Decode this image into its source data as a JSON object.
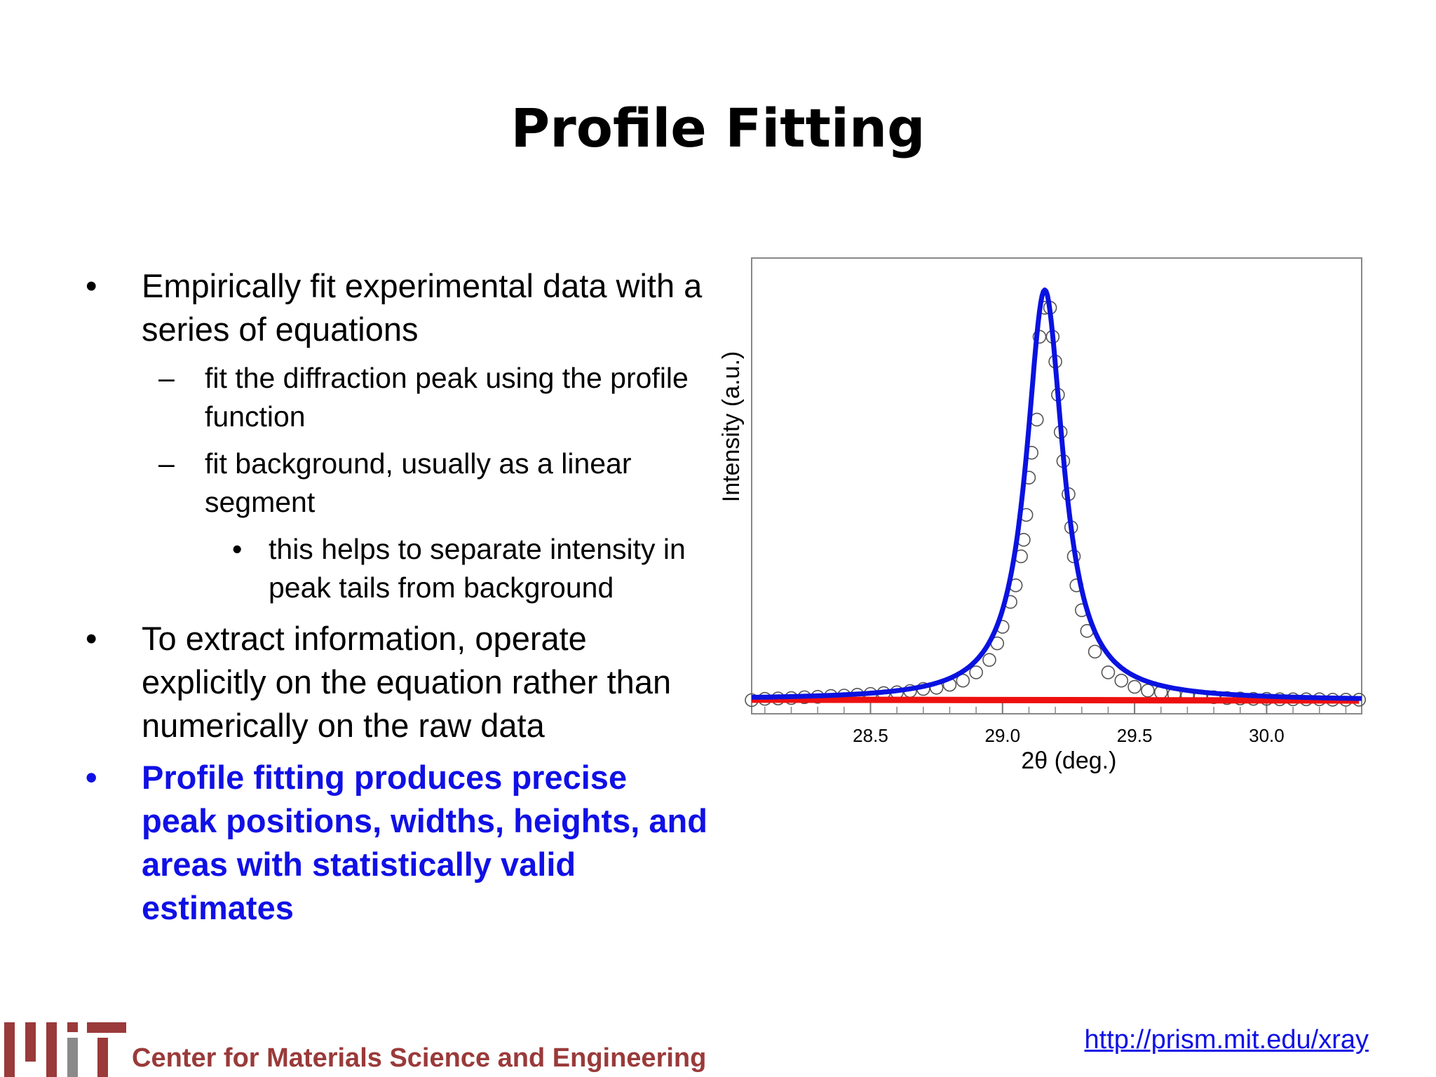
{
  "slide": {
    "title": "Profile Fitting",
    "bullets": [
      {
        "marker": "•",
        "text": "Empirically fit experimental data with a series of equations"
      },
      {
        "marker": "–",
        "text": "fit the diffraction peak using the profile function"
      },
      {
        "marker": "–",
        "text": "fit background, usually as a linear segment"
      },
      {
        "marker": "•",
        "text": "this helps to separate intensity in peak tails from background"
      },
      {
        "marker": "•",
        "text": "To extract information, operate explicitly on the equation rather than numerically on the raw data"
      },
      {
        "marker": "•",
        "text": "Profile fitting produces precise peak positions, widths, heights, and areas with statistically valid estimates"
      }
    ],
    "emphasis_color": "#1010e6"
  },
  "footer": {
    "org": "Center for Materials Science and Engineering",
    "url": "http://prism.mit.edu/xray",
    "logo_color_primary": "#9a3a3a",
    "logo_color_secondary": "#8a8a8a"
  },
  "chart_data": {
    "type": "line",
    "xlabel": "2θ (deg.)",
    "ylabel": "Intensity (a.u.)",
    "xlim": [
      28.05,
      30.36
    ],
    "ylim": [
      -0.03,
      1.07
    ],
    "x_ticks": [
      28.5,
      29.0,
      29.5,
      30.0
    ],
    "x_tick_labels": [
      "28.5",
      "29.0",
      "29.5",
      "30.0"
    ],
    "y_ticks_visible": false,
    "grid": false,
    "series": [
      {
        "role": "observed data",
        "marker": "open-circle",
        "color": "#555555",
        "x": [
          28.05,
          28.1,
          28.15,
          28.2,
          28.25,
          28.3,
          28.35,
          28.4,
          28.45,
          28.5,
          28.55,
          28.6,
          28.65,
          28.7,
          28.75,
          28.8,
          28.85,
          28.9,
          28.95,
          28.98,
          29.0,
          29.03,
          29.05,
          29.07,
          29.08,
          29.09,
          29.1,
          29.11,
          29.13,
          29.14,
          29.16,
          29.18,
          29.19,
          29.2,
          29.21,
          29.22,
          29.23,
          29.25,
          29.26,
          29.27,
          29.28,
          29.3,
          29.32,
          29.35,
          29.4,
          29.45,
          29.5,
          29.55,
          29.6,
          29.65,
          29.7,
          29.75,
          29.8,
          29.85,
          29.9,
          29.95,
          30.0,
          30.05,
          30.1,
          30.15,
          30.2,
          30.25,
          30.3,
          30.35
        ],
        "y": [
          0.003,
          0.006,
          0.007,
          0.008,
          0.01,
          0.011,
          0.013,
          0.014,
          0.016,
          0.018,
          0.02,
          0.022,
          0.025,
          0.03,
          0.033,
          0.04,
          0.05,
          0.07,
          0.1,
          0.14,
          0.18,
          0.24,
          0.28,
          0.35,
          0.39,
          0.45,
          0.54,
          0.6,
          0.68,
          0.88,
          0.95,
          0.95,
          0.88,
          0.82,
          0.74,
          0.65,
          0.58,
          0.5,
          0.42,
          0.35,
          0.28,
          0.22,
          0.17,
          0.12,
          0.07,
          0.05,
          0.035,
          0.026,
          0.022,
          0.017,
          0.014,
          0.012,
          0.01,
          0.008,
          0.007,
          0.006,
          0.006,
          0.005,
          0.005,
          0.005,
          0.005,
          0.004,
          0.004,
          0.004
        ]
      },
      {
        "role": "profile fit",
        "color": "#0a12e0",
        "peak_center": 29.16,
        "peak_height": 0.99,
        "hwhm": 0.085,
        "baseline_start": 0.004,
        "baseline_end": 0.002
      },
      {
        "role": "background",
        "color": "#ee1010",
        "x": [
          28.05,
          30.35
        ],
        "y": [
          0.004,
          0.002
        ]
      }
    ]
  }
}
